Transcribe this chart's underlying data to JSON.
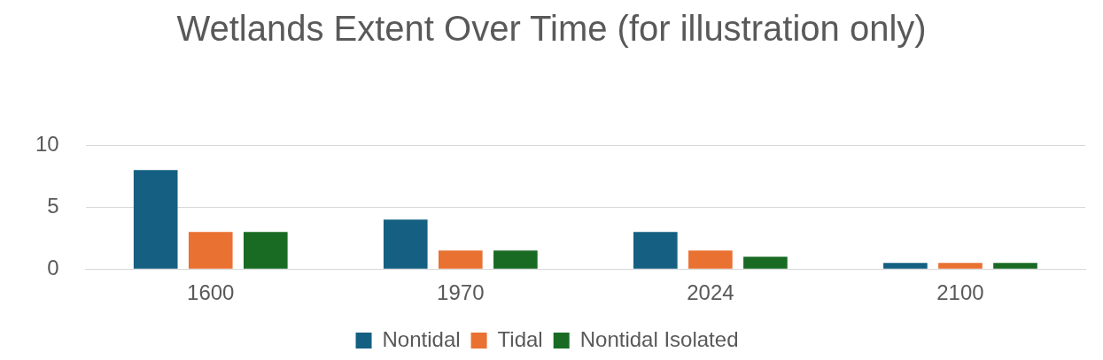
{
  "chart_data": {
    "type": "bar",
    "title": "Wetlands Extent Over Time (for illustration only)",
    "categories": [
      "1600",
      "1970",
      "2024",
      "2100"
    ],
    "series": [
      {
        "name": "Nontidal",
        "color": "#156082",
        "values": [
          8,
          4,
          3,
          0.5
        ]
      },
      {
        "name": "Tidal",
        "color": "#e97132",
        "values": [
          3,
          1.5,
          1.5,
          0.5
        ]
      },
      {
        "name": "Nontidal Isolated",
        "color": "#196b24",
        "values": [
          3,
          1.5,
          1,
          0.5
        ]
      }
    ],
    "ylim": [
      0,
      10
    ],
    "yticks": [
      0,
      5,
      10
    ],
    "grid": "y",
    "legend": "bottom"
  }
}
